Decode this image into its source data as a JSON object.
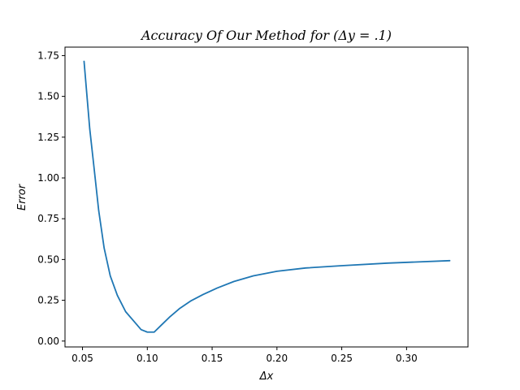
{
  "chart_data": {
    "type": "line",
    "title": "Accuracy Of Our Method for (Δy = .1)",
    "xlabel": "Δx",
    "ylabel": "Error",
    "xlim": [
      0.0365,
      0.3474
    ],
    "ylim": [
      -0.036,
      1.802
    ],
    "xticks": [
      0.05,
      0.1,
      0.15,
      0.2,
      0.25,
      0.3
    ],
    "xtick_labels": [
      "0.05",
      "0.10",
      "0.15",
      "0.20",
      "0.25",
      "0.30"
    ],
    "yticks": [
      0.0,
      0.25,
      0.5,
      0.75,
      1.0,
      1.25,
      1.5,
      1.75
    ],
    "ytick_labels": [
      "0.00",
      "0.25",
      "0.50",
      "0.75",
      "1.00",
      "1.25",
      "1.50",
      "1.75"
    ],
    "grid": false,
    "colors": {
      "series": "#1f77b4"
    },
    "series": [
      {
        "x": [
          0.0512,
          0.0556,
          0.0588,
          0.0625,
          0.0667,
          0.0714,
          0.0769,
          0.0833,
          0.0909,
          0.0952,
          0.1,
          0.1053,
          0.1111,
          0.1176,
          0.125,
          0.1333,
          0.1429,
          0.1538,
          0.1667,
          0.1818,
          0.2,
          0.2222,
          0.25,
          0.2857,
          0.3333
        ],
        "y": [
          1.715,
          1.3,
          1.07,
          0.8,
          0.57,
          0.4,
          0.28,
          0.18,
          0.11,
          0.07,
          0.055,
          0.055,
          0.1,
          0.15,
          0.2,
          0.245,
          0.285,
          0.325,
          0.365,
          0.4,
          0.428,
          0.448,
          0.462,
          0.478,
          0.493
        ]
      }
    ]
  }
}
